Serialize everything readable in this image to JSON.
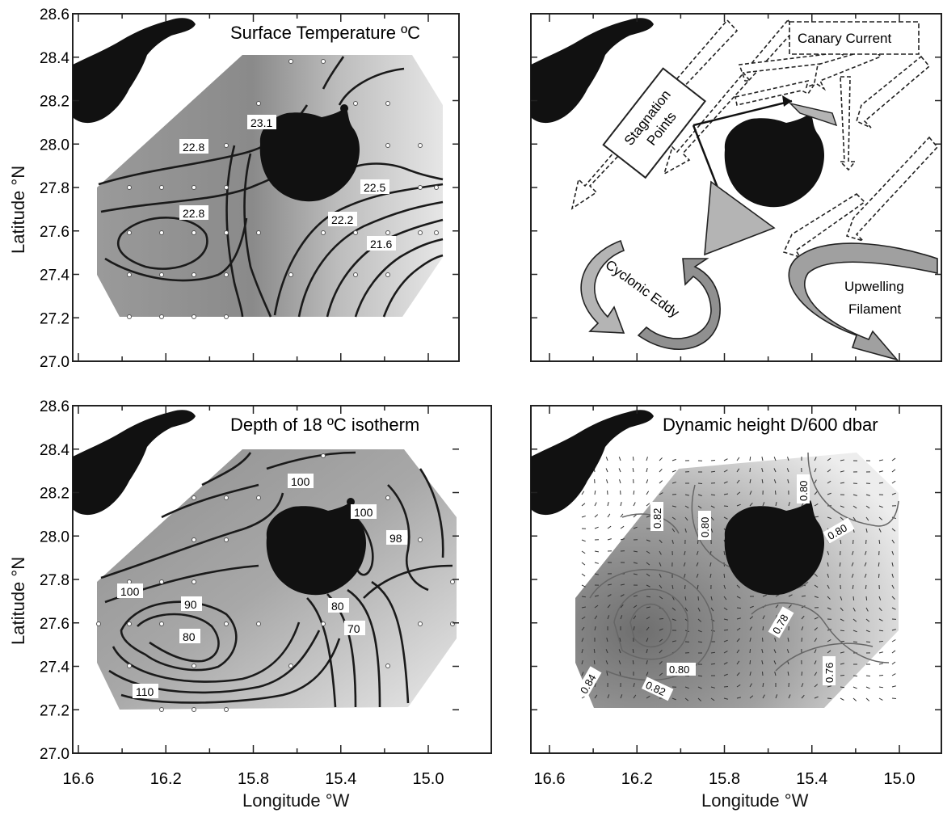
{
  "axes": {
    "lat_ticks": [
      "28.6",
      "28.4",
      "28.2",
      "28.0",
      "27.8",
      "27.6",
      "27.4",
      "27.2",
      "27.0"
    ],
    "lon_ticks": [
      "16.6",
      "16.2",
      "15.8",
      "15.4",
      "15.0"
    ],
    "ylabel_text": "Latitude",
    "ylabel_unit": "°N",
    "xlabel_text": "Longitude",
    "xlabel_unit": "°W"
  },
  "panels": {
    "sst": {
      "title": "Surface Temperature ºC",
      "labels": [
        "23.1",
        "22.8",
        "22.5",
        "22.8",
        "22.2",
        "21.6"
      ]
    },
    "schematic": {
      "labels": {
        "canary": "Canary Current",
        "stag1": "Stagnation",
        "stag2": "Points",
        "eddy": "Cyclonic Eddy",
        "upw1": "Upwelling",
        "upw2": "Filament"
      }
    },
    "isotherm": {
      "title": "Depth of 18 ºC isotherm",
      "labels": [
        "100",
        "100",
        "98",
        "100",
        "90",
        "80",
        "80",
        "70",
        "110"
      ]
    },
    "dynamic": {
      "title": "Dynamic height  D/600 dbar",
      "labels": [
        "0.80",
        "0.82",
        "0.80",
        "0.80",
        "0.78",
        "0.76",
        "0.80",
        "0.84",
        "0.82"
      ]
    }
  },
  "colors": {
    "land": "#111111",
    "field_dark": "#8c8c8c",
    "field_mid": "#a9a9a9",
    "field_light": "#d6d6d6",
    "contour": "#1a1a1a",
    "arrow_fill": "#b4b4b4"
  }
}
